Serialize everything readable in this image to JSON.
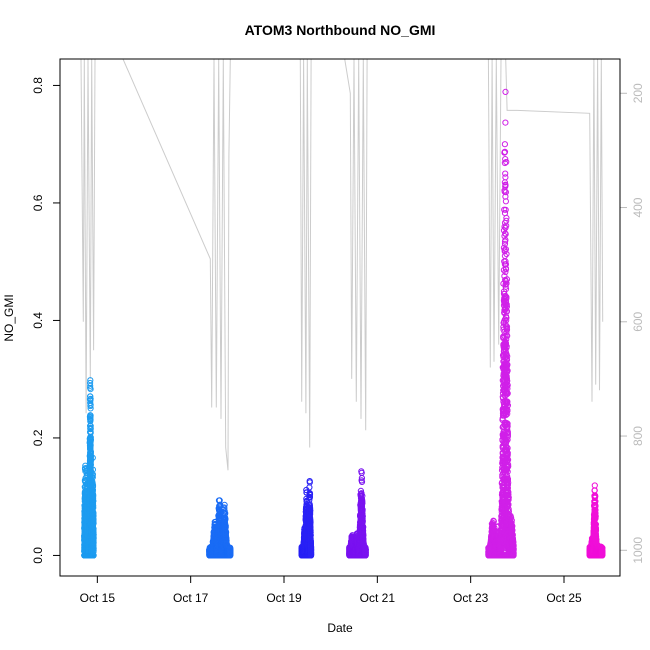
{
  "chart_data": {
    "type": "scatter",
    "title": "ATOM3 Northbound NO_GMI",
    "xlabel": "Date",
    "ylabel": "NO_GMI",
    "x_ticks": [
      "Oct 15",
      "Oct 17",
      "Oct 19",
      "Oct 21",
      "Oct 23",
      "Oct 25"
    ],
    "x_tick_days": [
      15,
      17,
      19,
      21,
      23,
      25
    ],
    "xlim_days": [
      14.2,
      26.2
    ],
    "ylim": [
      -0.035,
      0.845
    ],
    "y_ticks": [
      0.0,
      0.2,
      0.4,
      0.6,
      0.8
    ],
    "y_tick_labels": [
      "0.0",
      "0.2",
      "0.4",
      "0.6",
      "0.8"
    ],
    "right_axis": {
      "ticks": [
        200,
        400,
        600,
        800,
        1000
      ],
      "tick_labels": [
        "200",
        "400",
        "600",
        "800",
        "1000"
      ],
      "lim": [
        1045,
        140
      ],
      "color": "#bbbbbb",
      "description": "pressure (hPa), inverted"
    },
    "grid": false,
    "series": [
      {
        "color": "#1e9cf0",
        "day_range": [
          14.72,
          14.92
        ],
        "peaks": [
          [
            14.74,
            0.16
          ],
          [
            14.78,
            0.155
          ],
          [
            14.85,
            0.32
          ],
          [
            14.9,
            0.17
          ]
        ]
      },
      {
        "color": "#1a6cf5",
        "day_range": [
          17.4,
          17.85
        ],
        "peaks": [
          [
            17.52,
            0.065
          ],
          [
            17.62,
            0.102
          ],
          [
            17.72,
            0.09
          ]
        ]
      },
      {
        "color": "#2a22f5",
        "day_range": [
          19.38,
          19.58
        ],
        "peaks": [
          [
            19.44,
            0.05
          ],
          [
            19.48,
            0.118
          ],
          [
            19.55,
            0.127
          ]
        ]
      },
      {
        "color": "#7a12f0",
        "day_range": [
          20.4,
          20.75
        ],
        "peaks": [
          [
            20.46,
            0.038
          ],
          [
            20.56,
            0.04
          ],
          [
            20.66,
            0.145
          ]
        ]
      },
      {
        "color": "#d020e8",
        "day_range": [
          23.38,
          23.92
        ],
        "peaks": [
          [
            23.48,
            0.068
          ],
          [
            23.58,
            0.05
          ],
          [
            23.74,
            0.81
          ],
          [
            23.86,
            0.07
          ]
        ]
      },
      {
        "color": "#f00fd8",
        "day_range": [
          25.55,
          25.82
        ],
        "peaks": [
          [
            25.6,
            0.03
          ],
          [
            25.66,
            0.12
          ],
          [
            25.72,
            0.018
          ]
        ]
      }
    ],
    "pressure_trace": {
      "color": "#cccccc",
      "points": [
        [
          14.65,
          140
        ],
        [
          14.7,
          600
        ],
        [
          14.72,
          140
        ],
        [
          14.76,
          760
        ],
        [
          14.8,
          140
        ],
        [
          14.85,
          700
        ],
        [
          14.88,
          140
        ],
        [
          14.92,
          650
        ],
        [
          14.95,
          140
        ],
        [
          15.55,
          140
        ],
        [
          17.42,
          490
        ],
        [
          17.45,
          750
        ],
        [
          17.5,
          140
        ],
        [
          17.55,
          750
        ],
        [
          17.6,
          140
        ],
        [
          17.65,
          770
        ],
        [
          17.7,
          140
        ],
        [
          17.75,
          820
        ],
        [
          17.8,
          860
        ],
        [
          17.82,
          310
        ],
        [
          17.85,
          140
        ],
        [
          19.35,
          140
        ],
        [
          19.38,
          740
        ],
        [
          19.42,
          140
        ],
        [
          19.47,
          760
        ],
        [
          19.5,
          140
        ],
        [
          19.55,
          820
        ],
        [
          19.58,
          140
        ],
        [
          20.3,
          140
        ],
        [
          20.42,
          200
        ],
        [
          20.45,
          700
        ],
        [
          20.5,
          140
        ],
        [
          20.55,
          740
        ],
        [
          20.6,
          140
        ],
        [
          20.65,
          770
        ],
        [
          20.7,
          140
        ],
        [
          20.75,
          790
        ],
        [
          20.78,
          140
        ],
        [
          23.38,
          140
        ],
        [
          23.42,
          680
        ],
        [
          23.46,
          140
        ],
        [
          23.5,
          670
        ],
        [
          23.55,
          140
        ],
        [
          23.6,
          640
        ],
        [
          23.65,
          140
        ],
        [
          23.75,
          140
        ],
        [
          23.78,
          230
        ],
        [
          24.0,
          230
        ],
        [
          25.55,
          235
        ],
        [
          25.6,
          740
        ],
        [
          25.64,
          140
        ],
        [
          25.68,
          710
        ],
        [
          25.72,
          140
        ],
        [
          25.76,
          720
        ],
        [
          25.8,
          140
        ],
        [
          25.83,
          600
        ]
      ]
    }
  }
}
